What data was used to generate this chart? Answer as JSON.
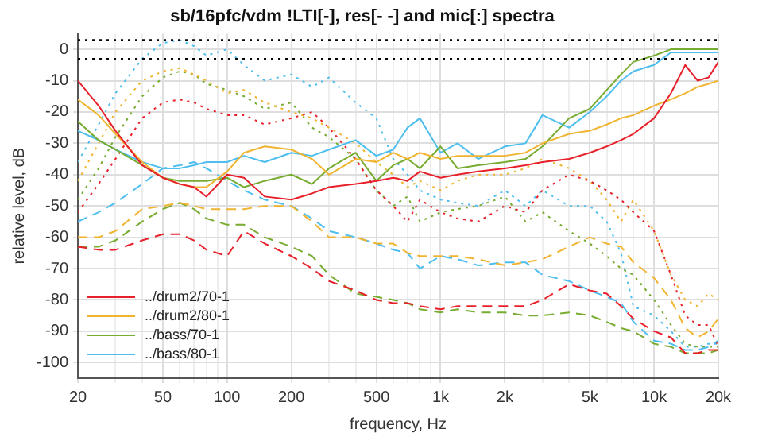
{
  "chart_data": {
    "type": "line",
    "title": "sb/16pfc/vdm !LTI[-], res[- -] and mic[:] spectra",
    "xlabel": "frequency, Hz",
    "ylabel": "relative level, dB",
    "log": "x",
    "x": [
      20,
      25,
      30,
      40,
      50,
      60,
      70,
      80,
      100,
      120,
      150,
      200,
      250,
      300,
      400,
      500,
      600,
      700,
      800,
      1000,
      1200,
      1500,
      2000,
      2500,
      3000,
      4000,
      5000,
      6000,
      7000,
      8000,
      10000,
      12000,
      14000,
      16000,
      18000,
      20000
    ],
    "xlim": [
      20,
      20000
    ],
    "xticks": [
      20,
      {
        "value": 30,
        "label": null
      },
      {
        "value": 40,
        "label": null
      },
      50,
      {
        "value": 60,
        "label": null
      },
      {
        "value": 70,
        "label": null
      },
      {
        "value": 80,
        "label": null
      },
      {
        "value": 90,
        "label": null
      },
      100,
      200,
      {
        "value": 300,
        "label": null
      },
      {
        "value": 400,
        "label": null
      },
      500,
      {
        "value": 600,
        "label": null
      },
      {
        "value": 700,
        "label": null
      },
      {
        "value": 800,
        "label": null
      },
      {
        "value": 900,
        "label": null
      },
      {
        "value": 1000,
        "label": "1k"
      },
      {
        "value": 2000,
        "label": "2k"
      },
      {
        "value": 3000,
        "label": null
      },
      {
        "value": 4000,
        "label": null
      },
      {
        "value": 5000,
        "label": "5k"
      },
      {
        "value": 6000,
        "label": null
      },
      {
        "value": 7000,
        "label": null
      },
      {
        "value": 8000,
        "label": null
      },
      {
        "value": 9000,
        "label": null
      },
      {
        "value": 10000,
        "label": "10k"
      },
      {
        "value": 20000,
        "label": "20k"
      }
    ],
    "ylim": [
      -105,
      5
    ],
    "yticks": [
      -100,
      -90,
      -80,
      -70,
      -60,
      -50,
      -40,
      -30,
      -20,
      -10,
      0
    ],
    "grid": true,
    "legend": "bottom left",
    "marker": "none",
    "ref_lines": [
      {
        "axis": "y",
        "value": 3,
        "color": "#000000",
        "line_style": "dotted"
      },
      {
        "axis": "y",
        "value": -3,
        "color": "#000000",
        "line_style": "dotted"
      }
    ],
    "series": [
      {
        "name": "../drum2/70-1",
        "color": "#e8202a",
        "line_style": "solid",
        "values": [
          -10,
          -18,
          -26,
          -37,
          -41,
          -43,
          -44,
          -47,
          -40,
          -41,
          -47,
          -48,
          -46,
          -44,
          -43,
          -42,
          -41,
          -42,
          -39,
          -41,
          -40,
          -39,
          -38,
          -37,
          -36,
          -35,
          -33,
          -31,
          -29,
          -27,
          -22,
          -14,
          -5,
          -10,
          -9,
          -4
        ]
      },
      {
        "name": "../drum2/80-1",
        "color": "#f0b430",
        "line_style": "solid",
        "values": [
          -16,
          -21,
          -27,
          -36,
          -41,
          -43,
          -44,
          -44,
          -39,
          -33,
          -31,
          -32,
          -35,
          -40,
          -35,
          -36,
          -33,
          -35,
          -33,
          -35,
          -34,
          -34,
          -34,
          -33,
          -30,
          -27,
          -26,
          -24,
          -22,
          -21,
          -18,
          -16,
          -14,
          -12,
          -11,
          -10
        ]
      },
      {
        "name": "../bass/70-1",
        "color": "#77ac30",
        "line_style": "solid",
        "values": [
          -23,
          -29,
          -32,
          -37,
          -41,
          -42,
          -42,
          -42,
          -41,
          -44,
          -42,
          -40,
          -43,
          -38,
          -33,
          -42,
          -37,
          -35,
          -38,
          -31,
          -38,
          -37,
          -36,
          -35,
          -31,
          -22,
          -19,
          -13,
          -8,
          -4,
          -2,
          0,
          0,
          0,
          0,
          0
        ]
      },
      {
        "name": "../bass/80-1",
        "color": "#4dbeee",
        "line_style": "solid",
        "values": [
          -26,
          -29,
          -32,
          -36,
          -38,
          -38,
          -37,
          -36,
          -36,
          -34,
          -36,
          -33,
          -34,
          -32,
          -29,
          -34,
          -32,
          -25,
          -22,
          -33,
          -30,
          -35,
          -31,
          -30,
          -21,
          -25,
          -20,
          -15,
          -10,
          -7,
          -5,
          -1,
          -1,
          -1,
          -1,
          -1
        ]
      },
      {
        "color": "#e8202a",
        "line_style": "dashed",
        "values": [
          -63,
          -64,
          -64,
          -61,
          -59,
          -59,
          -61,
          -64,
          -66,
          -58,
          -62,
          -66,
          -70,
          -74,
          -77,
          -80,
          -81,
          -81,
          -82,
          -83,
          -82,
          -82,
          -82,
          -82,
          -80,
          -75,
          -77,
          -78,
          -82,
          -86,
          -90,
          -92,
          -97,
          -97,
          -96,
          -96
        ]
      },
      {
        "color": "#f0b430",
        "line_style": "dashed",
        "values": [
          -60,
          -60,
          -58,
          -51,
          -50,
          -49,
          -50,
          -51,
          -51,
          -51,
          -50,
          -50,
          -55,
          -60,
          -60,
          -62,
          -62,
          -65,
          -66,
          -66,
          -66,
          -67,
          -69,
          -68,
          -67,
          -63,
          -60,
          -62,
          -63,
          -68,
          -73,
          -80,
          -89,
          -92,
          -90,
          -86
        ]
      },
      {
        "color": "#77ac30",
        "line_style": "dashed",
        "values": [
          -63,
          -63,
          -61,
          -55,
          -51,
          -49,
          -51,
          -54,
          -56,
          -56,
          -60,
          -63,
          -66,
          -72,
          -78,
          -79,
          -80,
          -81,
          -83,
          -84,
          -83,
          -84,
          -84,
          -85,
          -85,
          -84,
          -85,
          -87,
          -89,
          -90,
          -94,
          -95,
          -97,
          -97,
          -97,
          -96
        ]
      },
      {
        "color": "#4dbeee",
        "line_style": "dashed",
        "values": [
          -55,
          -52,
          -49,
          -43,
          -38,
          -37,
          -36,
          -38,
          -42,
          -45,
          -48,
          -50,
          -54,
          -58,
          -60,
          -62,
          -64,
          -65,
          -70,
          -66,
          -67,
          -69,
          -68,
          -68,
          -72,
          -74,
          -77,
          -79,
          -81,
          -87,
          -93,
          -94,
          -96,
          -96,
          -95,
          -93
        ]
      },
      {
        "color": "#e8202a",
        "line_style": "dotted",
        "values": [
          -52,
          -43,
          -35,
          -22,
          -17,
          -16,
          -17,
          -19,
          -21,
          -21,
          -24,
          -22,
          -20,
          -25,
          -35,
          -45,
          -50,
          -55,
          -48,
          -52,
          -54,
          -55,
          -50,
          -52,
          -45,
          -40,
          -42,
          -45,
          -48,
          -52,
          -58,
          -72,
          -85,
          -88,
          -88,
          -95
        ]
      },
      {
        "color": "#f0b430",
        "line_style": "dotted",
        "values": [
          -42,
          -30,
          -20,
          -10,
          -7,
          -6,
          -8,
          -10,
          -14,
          -13,
          -17,
          -20,
          -22,
          -25,
          -30,
          -36,
          -40,
          -44,
          -42,
          -45,
          -42,
          -40,
          -40,
          -38,
          -35,
          -38,
          -42,
          -48,
          -55,
          -48,
          -58,
          -72,
          -80,
          -82,
          -78,
          -80
        ]
      },
      {
        "color": "#77ac30",
        "line_style": "dotted",
        "values": [
          -48,
          -38,
          -28,
          -15,
          -9,
          -7,
          -8,
          -11,
          -13,
          -15,
          -19,
          -17,
          -25,
          -28,
          -35,
          -45,
          -50,
          -47,
          -55,
          -52,
          -51,
          -50,
          -47,
          -55,
          -52,
          -58,
          -62,
          -66,
          -70,
          -72,
          -80,
          -88,
          -94,
          -95,
          -95,
          -95
        ]
      },
      {
        "color": "#4dbeee",
        "line_style": "dotted",
        "values": [
          -36,
          -24,
          -14,
          -3,
          2,
          3,
          1,
          -2,
          0,
          -5,
          -10,
          -8,
          -12,
          -9,
          -17,
          -22,
          -35,
          -40,
          -45,
          -48,
          -49,
          -50,
          -45,
          -50,
          -45,
          -50,
          -50,
          -55,
          -65,
          -82,
          -85,
          -90,
          -95,
          -95,
          -94,
          -94
        ]
      }
    ]
  }
}
